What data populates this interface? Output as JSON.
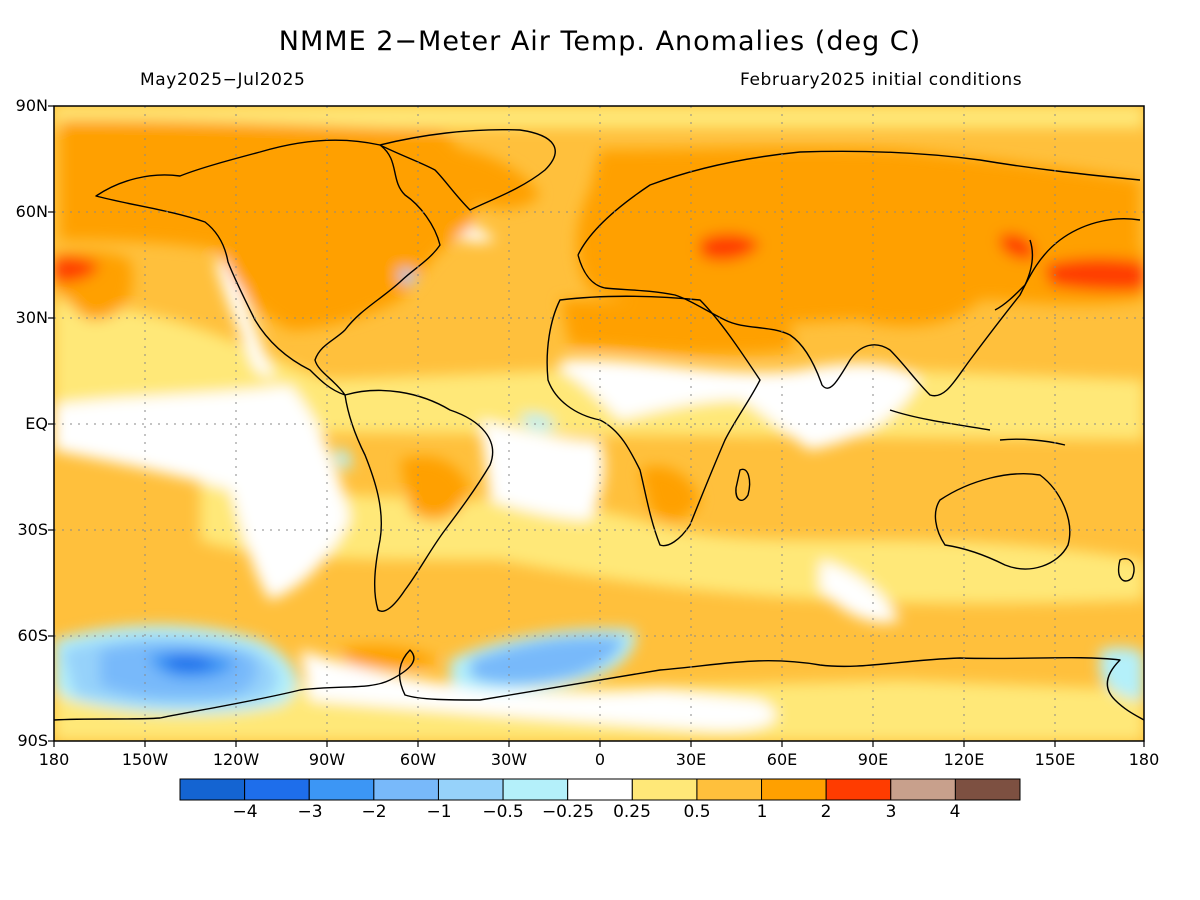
{
  "title": "NMME 2−Meter Air Temp. Anomalies (deg C)",
  "period": "May2025−Jul2025",
  "init": "February2025 initial conditions",
  "lat_labels": [
    "90N",
    "60N",
    "30N",
    "EQ",
    "30S",
    "60S",
    "90S"
  ],
  "lon_labels": [
    "180",
    "150W",
    "120W",
    "90W",
    "60W",
    "30W",
    "0",
    "30E",
    "60E",
    "90E",
    "120E",
    "150E",
    "180"
  ],
  "colorbar": {
    "labels": [
      "−4",
      "−3",
      "−2",
      "−1",
      "−0.5",
      "−0.25",
      "0.25",
      "0.5",
      "1",
      "2",
      "3",
      "4"
    ],
    "colors": [
      "#1464d2",
      "#1e6eeb",
      "#3c96f5",
      "#78b9fa",
      "#96d2fa",
      "#b4f0fa",
      "#ffffff",
      "#ffe878",
      "#ffc03c",
      "#ffa000",
      "#ff3c00",
      "#c8a08c",
      "#7d5041"
    ]
  },
  "map": {
    "projection": "cylindrical equidistant",
    "lat_range": [
      -90,
      90
    ],
    "lon_range": [
      -180,
      180
    ],
    "grid_lines": "dotted every 30 degrees"
  }
}
